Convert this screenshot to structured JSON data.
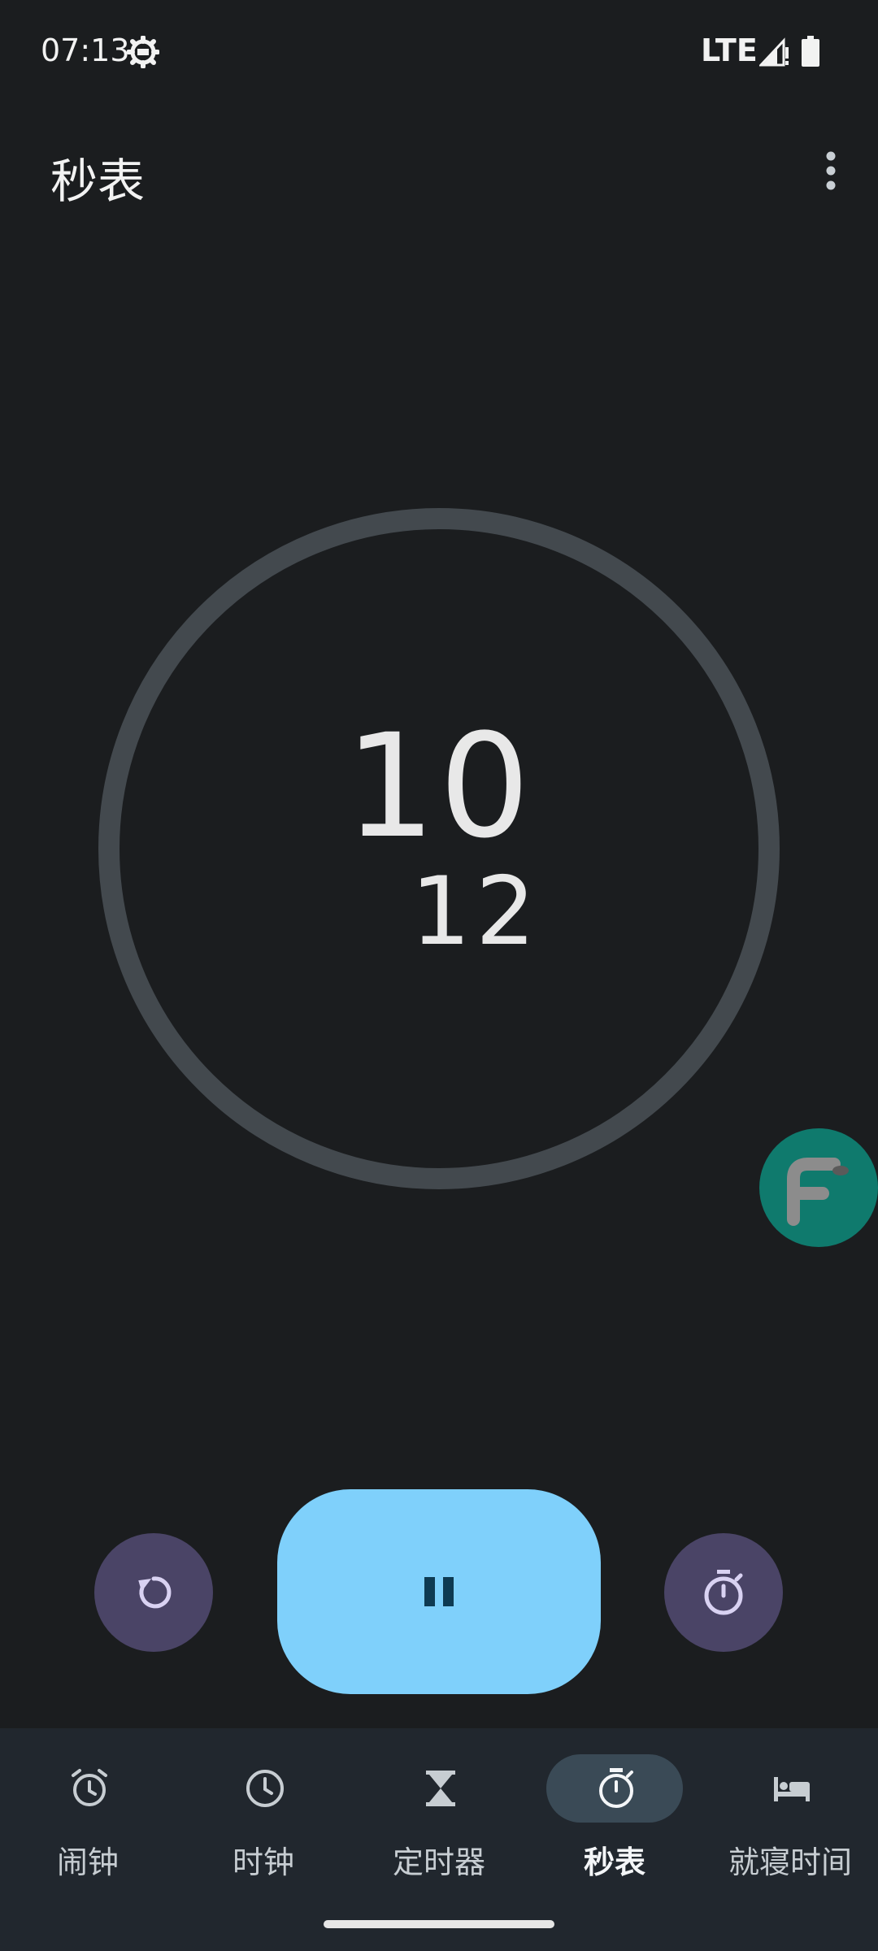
{
  "status_bar": {
    "time": "07:13",
    "network": "LTE",
    "icons": [
      "gear-icon",
      "signal-icon",
      "battery-icon"
    ]
  },
  "header": {
    "title": "秒表",
    "menu_icon": "more-vert-icon"
  },
  "stopwatch": {
    "seconds": "10",
    "hundredths": "12"
  },
  "controls": {
    "reset_icon": "refresh-icon",
    "pause_icon": "pause-icon",
    "lap_icon": "stopwatch-icon"
  },
  "floating_bubble": {
    "label": "F"
  },
  "bottom_nav": {
    "items": [
      {
        "label": "闹钟",
        "icon": "alarm-icon",
        "active": false
      },
      {
        "label": "时钟",
        "icon": "clock-icon",
        "active": false
      },
      {
        "label": "定时器",
        "icon": "hourglass-icon",
        "active": false
      },
      {
        "label": "秒表",
        "icon": "stopwatch-icon",
        "active": true
      },
      {
        "label": "就寝时间",
        "icon": "bed-icon",
        "active": false
      }
    ]
  },
  "colors": {
    "background": "#1b1d1f",
    "dial_ring": "#43494e",
    "pause_button": "#7fd0fb",
    "secondary_buttons": "#4a4466",
    "nav_background": "#21272e",
    "nav_active_pill": "#3a4a56",
    "bubble": "#0f7a6d"
  }
}
